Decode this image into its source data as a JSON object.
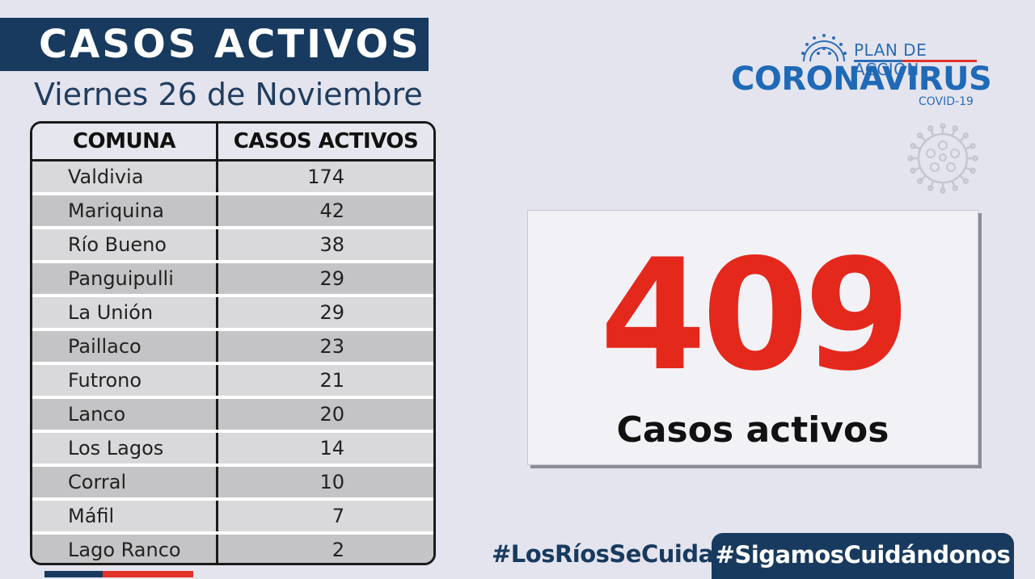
{
  "header": {
    "title": "CASOS ACTIVOS",
    "date": "Viernes 26 de Noviembre"
  },
  "logo": {
    "plan": "PLAN DE ACCIÓN",
    "name": "CORONAVIRUS",
    "covid": "COVID-19",
    "icon": "virus-icon"
  },
  "table": {
    "headers": [
      "COMUNA",
      "CASOS ACTIVOS"
    ],
    "rows": [
      {
        "comuna": "Valdivia",
        "casos": "174"
      },
      {
        "comuna": "Mariquina",
        "casos": "42"
      },
      {
        "comuna": "Río Bueno",
        "casos": "38"
      },
      {
        "comuna": "Panguipulli",
        "casos": "29"
      },
      {
        "comuna": "La Unión",
        "casos": "29"
      },
      {
        "comuna": "Paillaco",
        "casos": "23"
      },
      {
        "comuna": "Futrono",
        "casos": "21"
      },
      {
        "comuna": "Lanco",
        "casos": "20"
      },
      {
        "comuna": "Los Lagos",
        "casos": "14"
      },
      {
        "comuna": "Corral",
        "casos": "10"
      },
      {
        "comuna": "Máfil",
        "casos": "7"
      },
      {
        "comuna": "Lago Ranco",
        "casos": "2"
      }
    ]
  },
  "total": {
    "number": "409",
    "label": "Casos activos"
  },
  "footer": {
    "hashtag1": "#LosRíosSeCuida",
    "hashtag2": "#SigamosCuidándonos"
  },
  "colors": {
    "navy": "#173a5e",
    "red": "#e4281c",
    "blue": "#1f6ab7",
    "background": "#e4e4ee"
  }
}
